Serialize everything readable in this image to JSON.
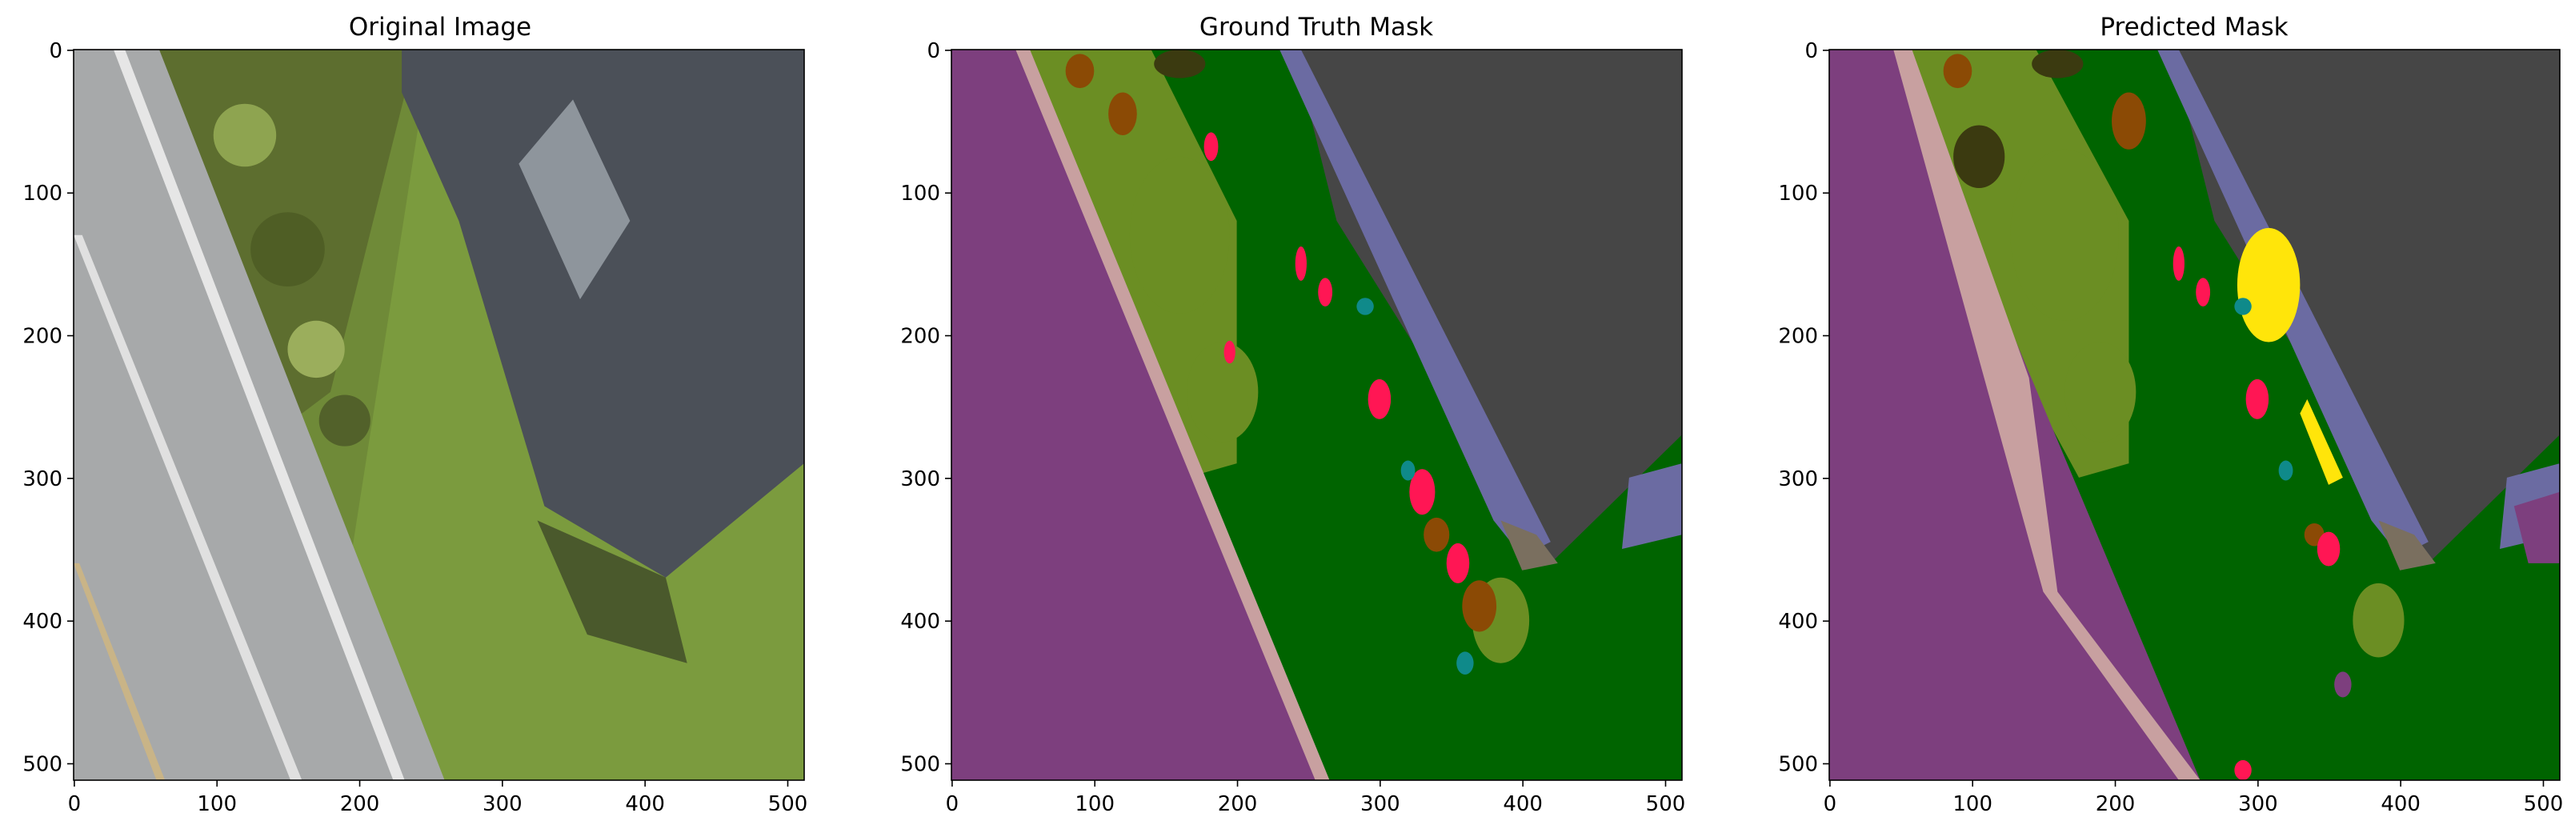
{
  "figure": {
    "panels": [
      {
        "title": "Original Image"
      },
      {
        "title": "Ground Truth Mask"
      },
      {
        "title": "Predicted Mask"
      }
    ],
    "xticks": [
      "0",
      "100",
      "200",
      "300",
      "400",
      "500"
    ],
    "yticks": [
      "0",
      "100",
      "200",
      "300",
      "400",
      "500"
    ],
    "axis_range": {
      "x": [
        0,
        512
      ],
      "y": [
        512,
        0
      ]
    }
  },
  "colors": {
    "road": "#7d3f7e",
    "grass": "#006400",
    "vegetation": "#6b8e23",
    "roof": "#464646",
    "wall": "#6b6ba2",
    "person": "#ff1654",
    "soil": "#8b4a05",
    "dirt_path": "#c8a0a0",
    "obstacle": "#0f8a8a",
    "gravel": "#7a6f5f",
    "tree": "#3b3a10",
    "car": "#ffe50a",
    "photo_road": "#a7a9aa",
    "photo_grass": "#7b9b3e",
    "photo_roof": "#4b5058"
  }
}
